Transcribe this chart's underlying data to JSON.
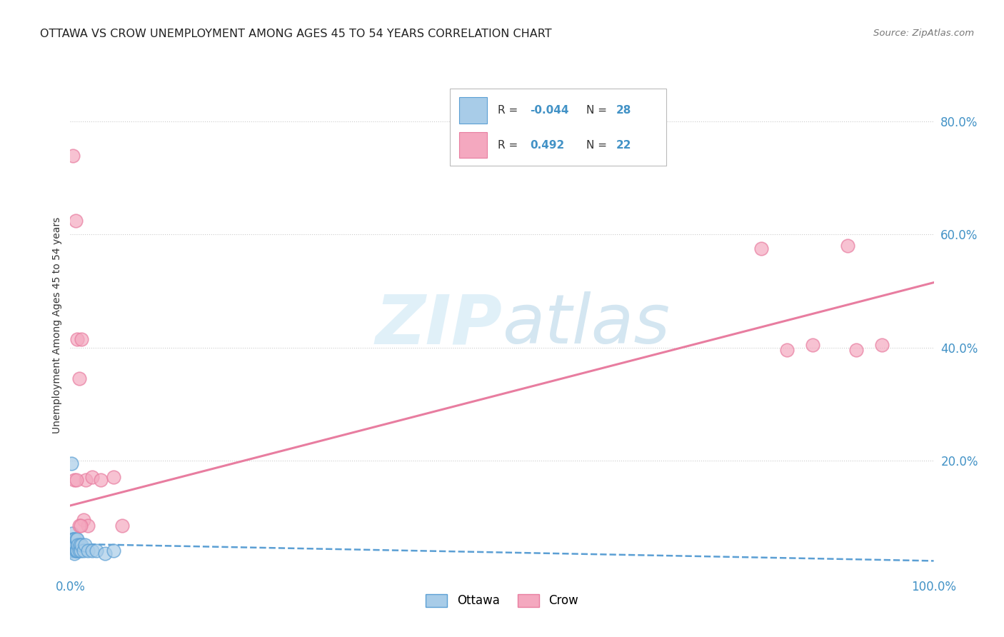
{
  "title": "OTTAWA VS CROW UNEMPLOYMENT AMONG AGES 45 TO 54 YEARS CORRELATION CHART",
  "source": "Source: ZipAtlas.com",
  "ylabel": "Unemployment Among Ages 45 to 54 years",
  "legend_ottawa_R": "-0.044",
  "legend_ottawa_N": "28",
  "legend_crow_R": "0.492",
  "legend_crow_N": "22",
  "ottawa_color": "#a8cce8",
  "crow_color": "#f4a8bf",
  "ottawa_edge_color": "#5b9fd4",
  "crow_edge_color": "#e87da0",
  "ottawa_line_color": "#5b9fd4",
  "crow_line_color": "#e87da0",
  "background_color": "#ffffff",
  "grid_color": "#cccccc",
  "ottawa_x": [
    0.001,
    0.002,
    0.002,
    0.003,
    0.003,
    0.004,
    0.004,
    0.005,
    0.005,
    0.006,
    0.006,
    0.007,
    0.007,
    0.008,
    0.008,
    0.009,
    0.01,
    0.011,
    0.012,
    0.013,
    0.015,
    0.017,
    0.02,
    0.025,
    0.03,
    0.04,
    0.05,
    0.001
  ],
  "ottawa_y": [
    0.04,
    0.05,
    0.07,
    0.04,
    0.06,
    0.04,
    0.06,
    0.035,
    0.06,
    0.04,
    0.05,
    0.04,
    0.06,
    0.04,
    0.06,
    0.05,
    0.04,
    0.05,
    0.04,
    0.05,
    0.04,
    0.05,
    0.04,
    0.04,
    0.04,
    0.035,
    0.04,
    0.195
  ],
  "crow_x": [
    0.003,
    0.006,
    0.008,
    0.01,
    0.013,
    0.018,
    0.025,
    0.035,
    0.8,
    0.86,
    0.9,
    0.94,
    0.83,
    0.91,
    0.05,
    0.06,
    0.015,
    0.02,
    0.005,
    0.007,
    0.01,
    0.012
  ],
  "crow_y": [
    0.74,
    0.625,
    0.415,
    0.345,
    0.415,
    0.165,
    0.17,
    0.165,
    0.575,
    0.405,
    0.58,
    0.405,
    0.395,
    0.395,
    0.17,
    0.085,
    0.095,
    0.085,
    0.165,
    0.165,
    0.085,
    0.085
  ],
  "ottawa_line_x": [
    0.0,
    0.055
  ],
  "ottawa_line_y": [
    0.052,
    0.038
  ],
  "crow_line_x": [
    0.0,
    1.0
  ],
  "crow_line_y": [
    0.12,
    0.515
  ],
  "xlim": [
    0.0,
    1.0
  ],
  "ylim": [
    0.0,
    0.88
  ],
  "yticks": [
    0.2,
    0.4,
    0.6,
    0.8
  ],
  "ytick_labels": [
    "20.0%",
    "40.0%",
    "60.0%",
    "80.0%"
  ],
  "xtick_vals": [
    0.0,
    1.0
  ],
  "xtick_labels": [
    "0.0%",
    "100.0%"
  ]
}
